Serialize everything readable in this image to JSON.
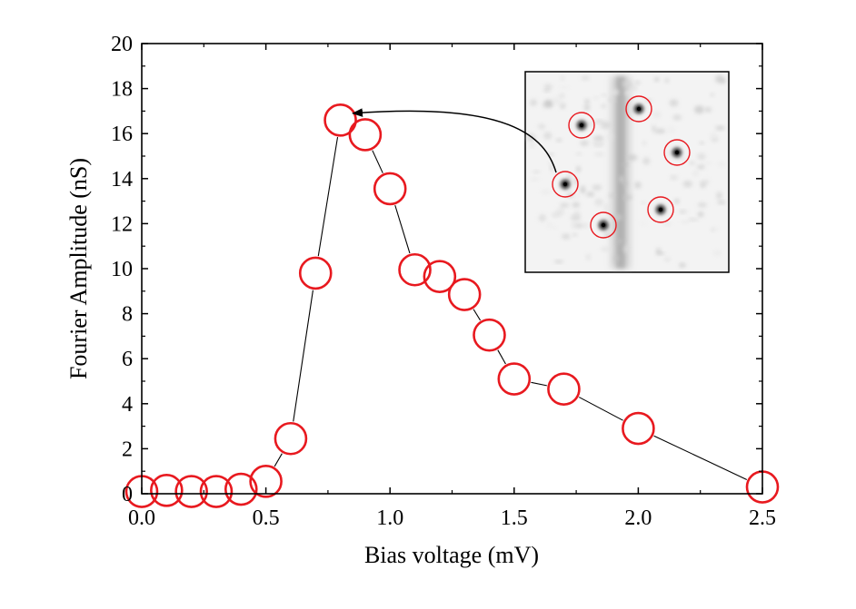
{
  "chart_data": {
    "type": "scatter",
    "title": "",
    "xlabel": "Bias voltage (mV)",
    "ylabel": "Fourier Amplitude (nS)",
    "xlim": [
      0.0,
      2.5
    ],
    "ylim": [
      0,
      20
    ],
    "xticks": [
      "0.0",
      "0.5",
      "1.0",
      "1.5",
      "2.0",
      "2.5"
    ],
    "yticks": [
      "0",
      "2",
      "4",
      "6",
      "8",
      "10",
      "12",
      "14",
      "16",
      "18",
      "20"
    ],
    "grid": false,
    "marker": "open-circle",
    "marker_color": "#e8191f",
    "line_color": "#000000",
    "series": [
      {
        "name": "Fourier amplitude",
        "x": [
          0.0,
          0.1,
          0.2,
          0.3,
          0.4,
          0.5,
          0.6,
          0.7,
          0.8,
          0.9,
          1.0,
          1.1,
          1.2,
          1.3,
          1.4,
          1.5,
          1.7,
          2.0,
          2.5
        ],
        "y": [
          0.1,
          0.15,
          0.1,
          0.1,
          0.2,
          0.55,
          2.45,
          9.8,
          16.6,
          15.95,
          13.55,
          9.95,
          9.65,
          8.85,
          7.05,
          5.1,
          4.65,
          2.9,
          0.3
        ]
      }
    ],
    "inset": {
      "description": "Fourier transform map with six Bragg peaks circled; arrow points to peak value",
      "arrow_target": {
        "x": 0.85,
        "y": 16.9
      },
      "peak_color": "#e8191f"
    }
  }
}
